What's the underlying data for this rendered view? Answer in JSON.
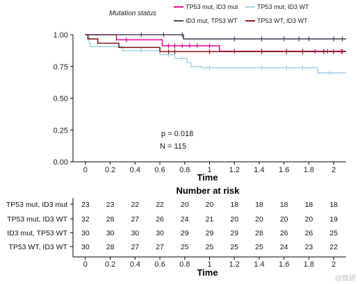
{
  "chart_data": [
    {
      "type": "line",
      "subtype": "kaplan-meier",
      "legend_title": "Mutation status",
      "legend_placement": "top",
      "xlabel": "Time",
      "ylabel": "",
      "xlim": [
        -0.1,
        2.1
      ],
      "ylim": [
        0,
        1
      ],
      "xticks": [
        0,
        0.2,
        0.4,
        0.6,
        0.8,
        1,
        1.2,
        1.4,
        1.6,
        1.8,
        2
      ],
      "xtick_labels": [
        "0",
        "0.2",
        "0.4",
        "0.6",
        "0.8",
        "1",
        "1.2",
        "1.4",
        "1.6",
        "1.8",
        "2"
      ],
      "yticks": [
        0,
        0.25,
        0.5,
        0.75,
        1
      ],
      "ytick_labels": [
        "0.00",
        "0.25",
        "0.50",
        "0.75",
        "1.00"
      ],
      "grid": false,
      "annotations": [
        "p = 0.018",
        "N = 115"
      ],
      "series": [
        {
          "name": "TP53 mut, ID3 mut",
          "color": "#e8109a",
          "steps": [
            [
              0,
              1.0
            ],
            [
              0.25,
              0.96
            ],
            [
              0.62,
              0.913
            ],
            [
              1.08,
              0.87
            ],
            [
              2.1,
              0.87
            ]
          ],
          "censor_x": [
            0.33,
            0.67,
            0.72,
            0.78,
            0.84,
            0.9,
            1.0,
            1.2,
            1.42,
            1.62,
            1.75,
            1.85,
            1.95,
            2.06
          ]
        },
        {
          "name": "TP53 mut, ID3 WT",
          "color": "#a6d2e6",
          "steps": [
            [
              0,
              1.0
            ],
            [
              0.03,
              0.938
            ],
            [
              0.04,
              0.906
            ],
            [
              0.3,
              0.875
            ],
            [
              0.6,
              0.844
            ],
            [
              0.72,
              0.813
            ],
            [
              0.82,
              0.781
            ],
            [
              0.85,
              0.75
            ],
            [
              0.93,
              0.74
            ],
            [
              1.87,
              0.7
            ],
            [
              2.1,
              0.7
            ]
          ],
          "censor_x": [
            0.45,
            0.67,
            0.78,
            1.0,
            1.42,
            1.62,
            1.75,
            1.97
          ]
        },
        {
          "name": "ID3 mut, TP53 WT",
          "color": "#4a4458",
          "steps": [
            [
              0,
              1.0
            ],
            [
              0.79,
              0.967
            ],
            [
              2.1,
              0.967
            ]
          ],
          "censor_x": [
            0.45,
            0.63,
            0.78,
            1.2,
            1.42,
            1.6,
            1.72,
            1.8,
            2.0,
            2.07
          ]
        },
        {
          "name": "TP53 WT, ID3 WT",
          "color": "#8a1c1c",
          "steps": [
            [
              0,
              1.0
            ],
            [
              0.02,
              0.967
            ],
            [
              0.1,
              0.933
            ],
            [
              0.27,
              0.9
            ],
            [
              0.6,
              0.867
            ],
            [
              2.1,
              0.867
            ]
          ],
          "censor_x": [
            0.67,
            0.72,
            1.0,
            1.42,
            1.62,
            1.75,
            1.92,
            2.0,
            2.07
          ]
        }
      ]
    },
    {
      "type": "table",
      "title": "Number at risk",
      "xlabel": "Time",
      "times": [
        0,
        0.2,
        0.4,
        0.6,
        0.8,
        1,
        1.2,
        1.4,
        1.6,
        1.8,
        2
      ],
      "time_labels": [
        "0",
        "0.2",
        "0.4",
        "0.6",
        "0.8",
        "1",
        "1.2",
        "1.4",
        "1.6",
        "1.8",
        "2"
      ],
      "rows": [
        {
          "label": "TP53 mut, ID3 mut",
          "values": [
            23,
            23,
            22,
            22,
            20,
            20,
            18,
            18,
            18,
            18,
            18
          ]
        },
        {
          "label": "TP53 mut, ID3 WT",
          "values": [
            32,
            28,
            27,
            26,
            24,
            21,
            20,
            20,
            20,
            20,
            19
          ]
        },
        {
          "label": "ID3 mut, TP53 WT",
          "values": [
            30,
            30,
            30,
            30,
            29,
            29,
            29,
            28,
            26,
            26,
            25
          ]
        },
        {
          "label": "TP53 WT, ID3 WT",
          "values": [
            30,
            28,
            27,
            27,
            25,
            25,
            25,
            25,
            24,
            23,
            22
          ]
        }
      ]
    }
  ],
  "watermark": "@致研"
}
